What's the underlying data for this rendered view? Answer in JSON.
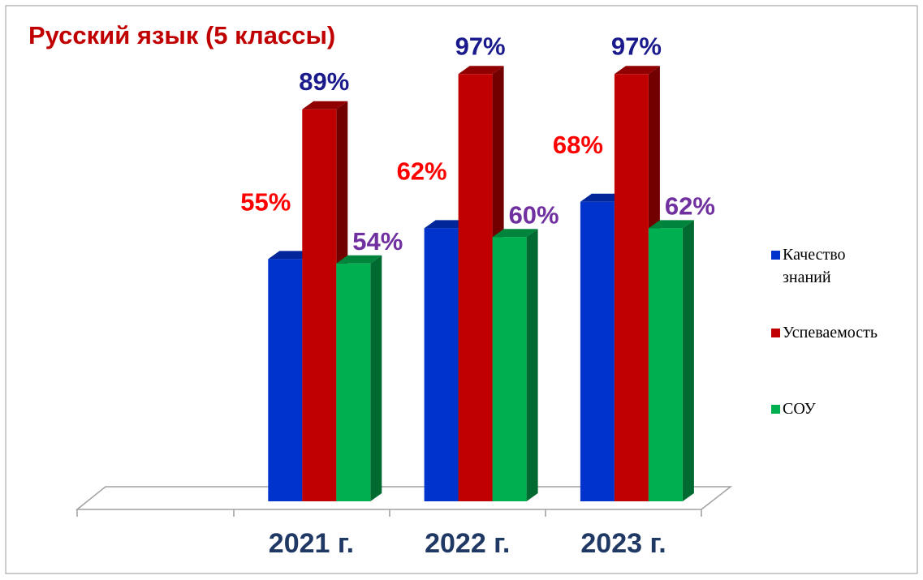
{
  "chart_data": {
    "type": "bar3d",
    "title": "Русский язык (5 классы)",
    "categories": [
      null,
      "2021 г.",
      "2022 г.",
      "2023 г."
    ],
    "series": [
      {
        "name": "Качество знаний",
        "color": "#0033cc",
        "label_color": "#ff0000",
        "values": [
          null,
          55,
          62,
          68
        ],
        "value_labels": [
          null,
          "55%",
          "62%",
          "68%"
        ]
      },
      {
        "name": "Успеваемость",
        "color": "#c00000",
        "label_color": "#1a1a8c",
        "values": [
          null,
          89,
          97,
          97
        ],
        "value_labels": [
          null,
          "89%",
          "97%",
          "97%"
        ]
      },
      {
        "name": "СОУ",
        "color": "#00b050",
        "label_color": "#7030a0",
        "values": [
          null,
          54,
          60,
          62
        ],
        "value_labels": [
          null,
          "54%",
          "60%",
          "62%"
        ]
      }
    ],
    "ylim": [
      0,
      100
    ],
    "legend": "right"
  }
}
